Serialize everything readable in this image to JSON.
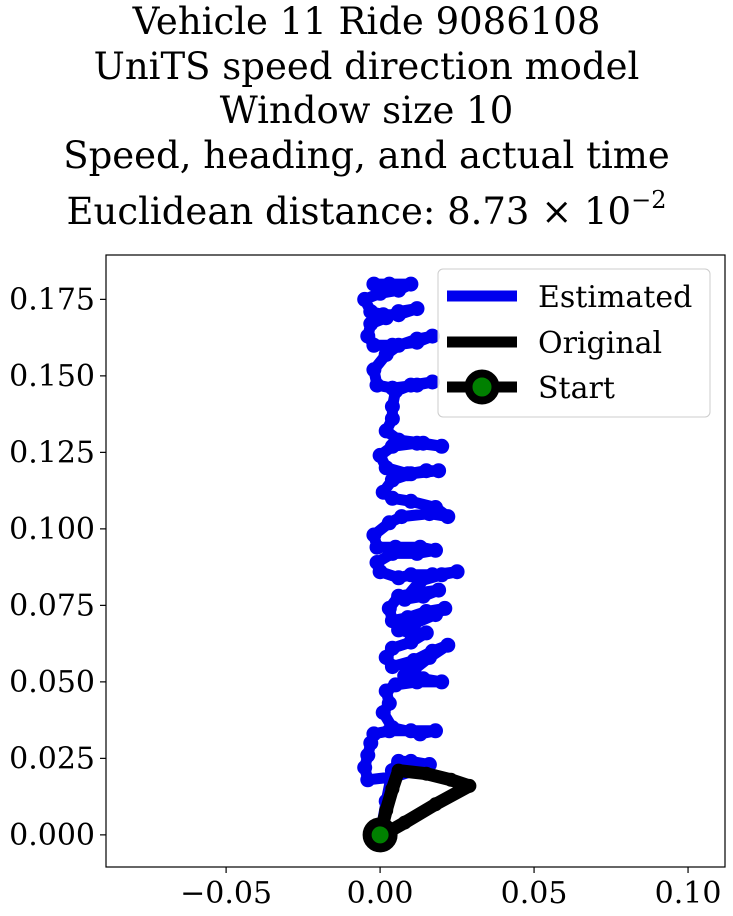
{
  "chart_data": {
    "type": "line",
    "title_lines": [
      "Vehicle 11 Ride 9086108",
      "UniTS speed direction model",
      "Window size 10",
      "Speed, heading, and actual time"
    ],
    "title_metric_label": "Euclidean distance: 8.73",
    "title_metric_multiplier": "× 10",
    "title_metric_exponent": "−2",
    "xlim": [
      -0.089,
      0.112
    ],
    "ylim": [
      -0.0105,
      0.1895
    ],
    "x_ticks": [
      -0.05,
      0.0,
      0.05,
      0.1
    ],
    "x_tick_labels": [
      "−0.05",
      "0.00",
      "0.05",
      "0.10"
    ],
    "y_ticks": [
      0.0,
      0.025,
      0.05,
      0.075,
      0.1,
      0.125,
      0.15,
      0.175
    ],
    "y_tick_labels": [
      "0.000",
      "0.025",
      "0.050",
      "0.075",
      "0.100",
      "0.125",
      "0.150",
      "0.175"
    ],
    "grid": false,
    "legend_position": "top-right",
    "series": [
      {
        "name": "Estimated",
        "color": "#0000ee",
        "marker": "circle",
        "points": [
          [
            0.0,
            0.0
          ],
          [
            0.002,
            0.011
          ],
          [
            0.004,
            0.021
          ],
          [
            0.006,
            0.024
          ],
          [
            0.01,
            0.024
          ],
          [
            0.016,
            0.023
          ],
          [
            0.011,
            0.021
          ],
          [
            0.005,
            0.019
          ],
          [
            -0.004,
            0.018
          ],
          [
            -0.005,
            0.022
          ],
          [
            -0.004,
            0.026
          ],
          [
            -0.003,
            0.03
          ],
          [
            -0.002,
            0.033
          ],
          [
            0.003,
            0.034
          ],
          [
            0.01,
            0.034
          ],
          [
            0.018,
            0.034
          ],
          [
            0.013,
            0.033
          ],
          [
            0.004,
            0.035
          ],
          [
            0.001,
            0.04
          ],
          [
            0.003,
            0.043
          ],
          [
            0.002,
            0.047
          ],
          [
            0.005,
            0.049
          ],
          [
            0.012,
            0.05
          ],
          [
            0.02,
            0.05
          ],
          [
            0.014,
            0.051
          ],
          [
            0.008,
            0.052
          ],
          [
            0.011,
            0.054
          ],
          [
            0.016,
            0.058
          ],
          [
            0.022,
            0.062
          ],
          [
            0.017,
            0.06
          ],
          [
            0.011,
            0.057
          ],
          [
            0.004,
            0.055
          ],
          [
            0.002,
            0.058
          ],
          [
            0.004,
            0.061
          ],
          [
            0.01,
            0.063
          ],
          [
            0.015,
            0.066
          ],
          [
            0.01,
            0.066
          ],
          [
            0.006,
            0.067
          ],
          [
            0.011,
            0.069
          ],
          [
            0.018,
            0.072
          ],
          [
            0.021,
            0.074
          ],
          [
            0.015,
            0.073
          ],
          [
            0.009,
            0.071
          ],
          [
            0.004,
            0.07
          ],
          [
            0.003,
            0.074
          ],
          [
            0.006,
            0.078
          ],
          [
            0.012,
            0.079
          ],
          [
            0.019,
            0.08
          ],
          [
            0.014,
            0.078
          ],
          [
            0.008,
            0.077
          ],
          [
            0.013,
            0.083
          ],
          [
            0.02,
            0.085
          ],
          [
            0.025,
            0.086
          ],
          [
            0.017,
            0.085
          ],
          [
            0.01,
            0.085
          ],
          [
            0.006,
            0.084
          ],
          [
            0.0,
            0.086
          ],
          [
            -0.001,
            0.089
          ],
          [
            0.004,
            0.092
          ],
          [
            0.012,
            0.092
          ],
          [
            0.018,
            0.093
          ],
          [
            0.013,
            0.094
          ],
          [
            0.005,
            0.094
          ],
          [
            -0.001,
            0.094
          ],
          [
            -0.002,
            0.098
          ],
          [
            0.003,
            0.102
          ],
          [
            0.007,
            0.104
          ],
          [
            0.016,
            0.105
          ],
          [
            0.022,
            0.104
          ],
          [
            0.018,
            0.107
          ],
          [
            0.01,
            0.109
          ],
          [
            0.004,
            0.11
          ],
          [
            0.001,
            0.112
          ],
          [
            0.004,
            0.116
          ],
          [
            0.01,
            0.118
          ],
          [
            0.019,
            0.119
          ],
          [
            0.015,
            0.119
          ],
          [
            0.009,
            0.118
          ],
          [
            0.002,
            0.12
          ],
          [
            0.0,
            0.124
          ],
          [
            0.004,
            0.127
          ],
          [
            0.012,
            0.128
          ],
          [
            0.02,
            0.127
          ],
          [
            0.014,
            0.128
          ],
          [
            0.006,
            0.129
          ],
          [
            0.002,
            0.132
          ],
          [
            0.004,
            0.136
          ],
          [
            0.004,
            0.14
          ],
          [
            0.005,
            0.145
          ],
          [
            0.01,
            0.147
          ],
          [
            0.017,
            0.148
          ],
          [
            0.012,
            0.147
          ],
          [
            0.004,
            0.146
          ],
          [
            -0.001,
            0.147
          ],
          [
            -0.002,
            0.152
          ],
          [
            0.002,
            0.157
          ],
          [
            0.006,
            0.16
          ],
          [
            0.012,
            0.162
          ],
          [
            0.017,
            0.163
          ],
          [
            0.012,
            0.161
          ],
          [
            0.004,
            0.16
          ],
          [
            -0.002,
            0.16
          ],
          [
            -0.004,
            0.163
          ],
          [
            -0.003,
            0.167
          ],
          [
            0.002,
            0.169
          ],
          [
            0.006,
            0.171
          ],
          [
            0.012,
            0.172
          ],
          [
            0.006,
            0.17
          ],
          [
            0.001,
            0.17
          ],
          [
            -0.003,
            0.171
          ],
          [
            -0.005,
            0.175
          ],
          [
            0.0,
            0.177
          ],
          [
            0.006,
            0.178
          ],
          [
            0.01,
            0.18
          ],
          [
            0.003,
            0.18
          ],
          [
            -0.002,
            0.18
          ],
          [
            0.0,
            0.179
          ]
        ]
      },
      {
        "name": "Original",
        "color": "#000000",
        "points": [
          [
            0.0,
            0.0
          ],
          [
            0.002,
            0.008
          ],
          [
            0.004,
            0.015
          ],
          [
            0.006,
            0.021
          ],
          [
            0.015,
            0.02
          ],
          [
            0.023,
            0.018
          ],
          [
            0.029,
            0.016
          ],
          [
            0.018,
            0.01
          ],
          [
            0.008,
            0.004
          ],
          [
            0.001,
            0.0
          ]
        ]
      }
    ],
    "start_point": {
      "name": "Start",
      "x": 0.0,
      "y": 0.0,
      "marker_color": "#008000",
      "edge_color": "#000000"
    }
  }
}
